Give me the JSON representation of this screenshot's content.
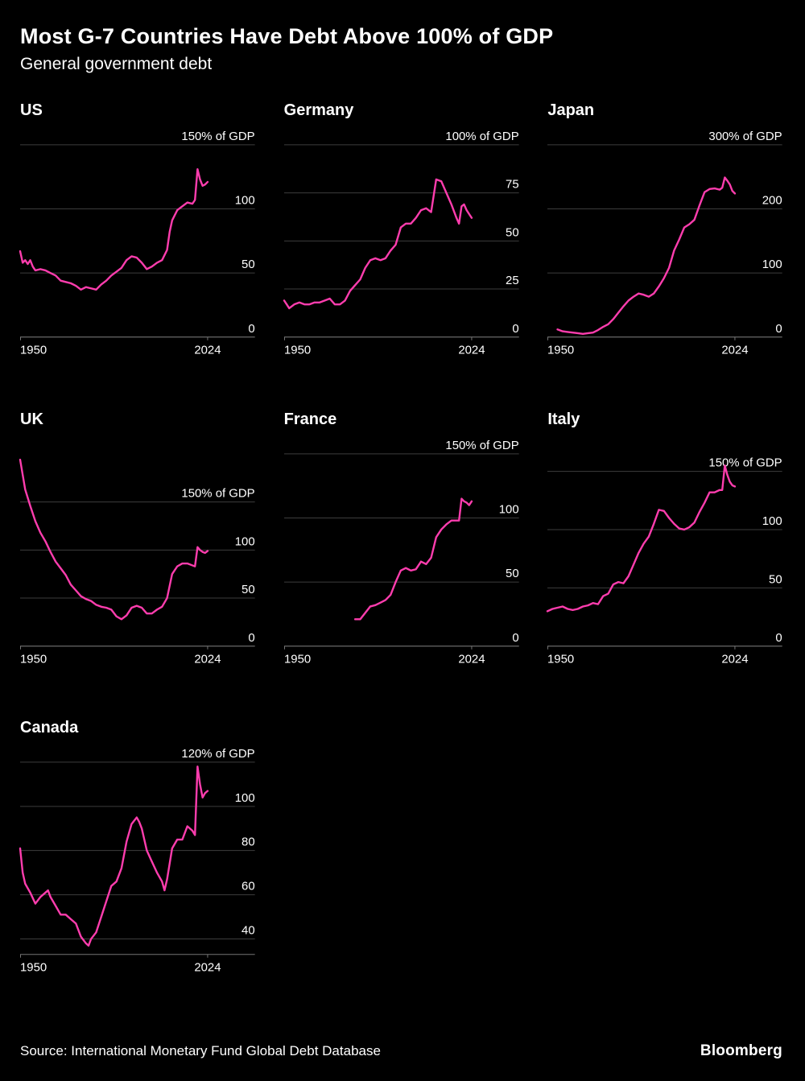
{
  "header": {
    "title": "Most G-7 Countries Have Debt Above 100% of GDP",
    "subtitle": "General government debt"
  },
  "footer": {
    "source": "Source: International Monetary Fund Global Debt Database",
    "brand": "Bloomberg"
  },
  "colors": {
    "background": "#000000",
    "text": "#ffffff",
    "line": "#ff3dae",
    "grid": "#3d3d3d",
    "axis": "#757575"
  },
  "chart_data": [
    {
      "type": "line",
      "title": "US",
      "unit_label": "150% of GDP",
      "unit_tick": 150,
      "yticks": [
        100,
        50,
        0
      ],
      "ylim": [
        0,
        150
      ],
      "x_range": [
        1950,
        2024
      ],
      "xticks": [
        "1950",
        "2024"
      ],
      "legend": "none",
      "grid": "horizontal",
      "x": [
        1950,
        1951,
        1952,
        1953,
        1954,
        1955,
        1956,
        1958,
        1960,
        1962,
        1964,
        1966,
        1968,
        1970,
        1972,
        1974,
        1976,
        1978,
        1980,
        1982,
        1984,
        1986,
        1988,
        1990,
        1992,
        1994,
        1996,
        1998,
        2000,
        2002,
        2004,
        2006,
        2008,
        2009,
        2010,
        2012,
        2014,
        2016,
        2018,
        2019,
        2020,
        2021,
        2022,
        2023,
        2024
      ],
      "values": [
        67,
        58,
        60,
        57,
        60,
        55,
        52,
        53,
        52,
        50,
        48,
        44,
        43,
        42,
        40,
        37,
        39,
        38,
        37,
        41,
        44,
        48,
        51,
        54,
        60,
        63,
        62,
        58,
        53,
        55,
        58,
        60,
        68,
        82,
        91,
        99,
        102,
        105,
        104,
        107,
        131,
        123,
        118,
        119,
        121
      ]
    },
    {
      "type": "line",
      "title": "Germany",
      "unit_label": "100% of GDP",
      "unit_tick": 100,
      "yticks": [
        75,
        50,
        25,
        0
      ],
      "ylim": [
        0,
        100
      ],
      "x_range": [
        1950,
        2024
      ],
      "xticks": [
        "1950",
        "2024"
      ],
      "legend": "none",
      "grid": "horizontal",
      "x": [
        1950,
        1951,
        1952,
        1954,
        1956,
        1958,
        1960,
        1962,
        1964,
        1966,
        1968,
        1970,
        1972,
        1974,
        1976,
        1978,
        1980,
        1982,
        1984,
        1986,
        1988,
        1990,
        1992,
        1994,
        1996,
        1998,
        2000,
        2002,
        2004,
        2006,
        2008,
        2010,
        2012,
        2014,
        2016,
        2018,
        2019,
        2020,
        2021,
        2022,
        2023,
        2024
      ],
      "values": [
        19,
        17,
        15,
        17,
        18,
        17,
        17,
        18,
        18,
        19,
        20,
        17,
        17,
        19,
        24,
        27,
        30,
        36,
        40,
        41,
        40,
        41,
        45,
        48,
        57,
        59,
        59,
        62,
        66,
        67,
        65,
        82,
        81,
        75,
        69,
        62,
        59,
        68,
        69,
        66,
        64,
        62
      ]
    },
    {
      "type": "line",
      "title": "Japan",
      "unit_label": "300% of GDP",
      "unit_tick": 300,
      "yticks": [
        200,
        100,
        0
      ],
      "ylim": [
        0,
        300
      ],
      "x_range": [
        1950,
        2024
      ],
      "xticks": [
        "1950",
        "2024"
      ],
      "legend": "none",
      "grid": "horizontal",
      "x": [
        1954,
        1956,
        1958,
        1960,
        1962,
        1964,
        1966,
        1968,
        1970,
        1972,
        1974,
        1976,
        1978,
        1980,
        1982,
        1984,
        1986,
        1988,
        1990,
        1992,
        1994,
        1996,
        1998,
        2000,
        2002,
        2004,
        2006,
        2008,
        2010,
        2012,
        2014,
        2016,
        2018,
        2019,
        2020,
        2021,
        2022,
        2023,
        2024
      ],
      "values": [
        12,
        9,
        8,
        7,
        6,
        5,
        6,
        7,
        11,
        16,
        20,
        28,
        38,
        48,
        57,
        63,
        68,
        66,
        63,
        68,
        79,
        92,
        108,
        135,
        152,
        171,
        176,
        183,
        205,
        226,
        231,
        232,
        230,
        233,
        249,
        244,
        238,
        228,
        224
      ]
    },
    {
      "type": "line",
      "title": "UK",
      "unit_label": "150% of GDP",
      "unit_tick": 150,
      "yticks": [
        100,
        50,
        0
      ],
      "ylim": [
        0,
        200
      ],
      "x_range": [
        1950,
        2024
      ],
      "xticks": [
        "1950",
        "2024"
      ],
      "legend": "none",
      "grid": "horizontal",
      "x": [
        1950,
        1952,
        1954,
        1956,
        1958,
        1960,
        1962,
        1964,
        1966,
        1968,
        1970,
        1972,
        1974,
        1976,
        1978,
        1980,
        1982,
        1984,
        1986,
        1988,
        1990,
        1992,
        1994,
        1996,
        1998,
        2000,
        2002,
        2004,
        2006,
        2008,
        2010,
        2012,
        2014,
        2016,
        2018,
        2019,
        2020,
        2021,
        2022,
        2023,
        2024
      ],
      "values": [
        194,
        163,
        146,
        130,
        118,
        109,
        98,
        88,
        81,
        74,
        64,
        58,
        52,
        49,
        47,
        43,
        41,
        40,
        38,
        31,
        28,
        32,
        40,
        42,
        40,
        34,
        34,
        38,
        41,
        50,
        75,
        83,
        86,
        86,
        84,
        83,
        103,
        100,
        98,
        97,
        99
      ]
    },
    {
      "type": "line",
      "title": "France",
      "unit_label": "150% of GDP",
      "unit_tick": 150,
      "yticks": [
        100,
        50,
        0
      ],
      "ylim": [
        0,
        150
      ],
      "x_range": [
        1950,
        2024
      ],
      "xticks": [
        "1950",
        "2024"
      ],
      "legend": "none",
      "grid": "horizontal",
      "x": [
        1978,
        1980,
        1982,
        1984,
        1986,
        1988,
        1990,
        1992,
        1994,
        1996,
        1998,
        2000,
        2002,
        2004,
        2006,
        2008,
        2010,
        2012,
        2014,
        2016,
        2018,
        2019,
        2020,
        2021,
        2022,
        2023,
        2024
      ],
      "values": [
        21,
        21,
        26,
        31,
        32,
        34,
        36,
        40,
        50,
        59,
        61,
        59,
        60,
        66,
        64,
        69,
        85,
        91,
        95,
        98,
        98,
        98,
        115,
        113,
        112,
        110,
        113
      ]
    },
    {
      "type": "line",
      "title": "Italy",
      "unit_label": "150% of GDP",
      "unit_tick": 150,
      "yticks": [
        100,
        50,
        0
      ],
      "ylim": [
        0,
        165
      ],
      "x_range": [
        1950,
        2024
      ],
      "xticks": [
        "1950",
        "2024"
      ],
      "legend": "none",
      "grid": "horizontal",
      "x": [
        1950,
        1952,
        1954,
        1956,
        1958,
        1960,
        1962,
        1964,
        1966,
        1968,
        1970,
        1972,
        1974,
        1976,
        1978,
        1980,
        1982,
        1984,
        1986,
        1988,
        1990,
        1992,
        1994,
        1996,
        1998,
        2000,
        2002,
        2004,
        2006,
        2008,
        2010,
        2012,
        2014,
        2016,
        2018,
        2019,
        2020,
        2021,
        2022,
        2023,
        2024
      ],
      "values": [
        30,
        32,
        33,
        34,
        32,
        31,
        32,
        34,
        35,
        37,
        36,
        43,
        45,
        53,
        55,
        54,
        60,
        70,
        80,
        88,
        94,
        105,
        117,
        116,
        110,
        105,
        101,
        100,
        102,
        106,
        115,
        123,
        132,
        132,
        134,
        134,
        155,
        147,
        141,
        138,
        137
      ]
    },
    {
      "type": "line",
      "title": "Canada",
      "unit_label": "120% of GDP",
      "unit_tick": 120,
      "yticks": [
        100,
        80,
        60,
        40
      ],
      "ylim": [
        33,
        120
      ],
      "x_range": [
        1950,
        2024
      ],
      "xticks": [
        "1950",
        "2024"
      ],
      "legend": "none",
      "grid": "horizontal",
      "x": [
        1950,
        1951,
        1952,
        1954,
        1956,
        1958,
        1960,
        1961,
        1962,
        1964,
        1966,
        1968,
        1970,
        1972,
        1974,
        1976,
        1977,
        1978,
        1980,
        1982,
        1984,
        1986,
        1988,
        1990,
        1992,
        1994,
        1996,
        1997,
        1998,
        2000,
        2002,
        2004,
        2006,
        2007,
        2008,
        2010,
        2012,
        2014,
        2016,
        2018,
        2019,
        2020,
        2021,
        2022,
        2023,
        2024
      ],
      "values": [
        81,
        70,
        65,
        61,
        56,
        59,
        61,
        62,
        59,
        55,
        51,
        51,
        49,
        47,
        41,
        38,
        37,
        40,
        43,
        50,
        57,
        64,
        66,
        72,
        84,
        92,
        95,
        93,
        90,
        80,
        75,
        70,
        66,
        62,
        67,
        81,
        85,
        85,
        91,
        89,
        87,
        118,
        110,
        104,
        106,
        107
      ]
    }
  ]
}
